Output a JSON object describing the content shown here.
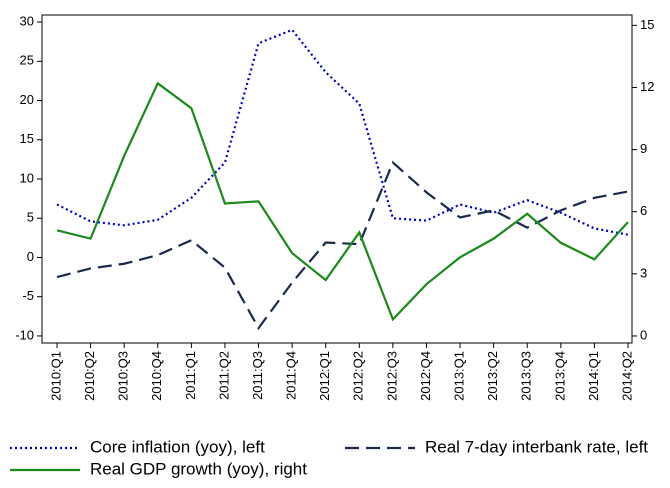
{
  "chart_data": {
    "type": "line",
    "categories": [
      "2010:Q1",
      "2010:Q2",
      "2010:Q3",
      "2010:Q4",
      "2011:Q1",
      "2011:Q2",
      "2011:Q3",
      "2011:Q4",
      "2012:Q1",
      "2012:Q2",
      "2012:Q3",
      "2012:Q4",
      "2013:Q1",
      "2013:Q2",
      "2013:Q3",
      "2013:Q4",
      "2014:Q1",
      "2014:Q2"
    ],
    "series": [
      {
        "name": "Core inflation (yoy), left",
        "color": "#0000cc",
        "dash": "dotted",
        "values": [
          6.75,
          4.6,
          4.1,
          4.8,
          7.6,
          12.1,
          27.3,
          29.0,
          23.6,
          19.6,
          5.0,
          4.7,
          6.75,
          5.7,
          7.3,
          5.7,
          3.7,
          2.9
        ]
      },
      {
        "name": "Real 7-day interbank rate, left",
        "color": "#1a2a4a",
        "dash": "dashed",
        "values": [
          -2.5,
          -1.4,
          -0.8,
          0.3,
          2.2,
          -1.3,
          -9.0,
          -3.2,
          1.9,
          1.7,
          12.1,
          8.3,
          5.1,
          6.0,
          3.8,
          6.0,
          7.6,
          8.4
        ]
      },
      {
        "name": "Real GDP growth (yoy), right",
        "color": "#1a8a1a",
        "dash": "solid",
        "axis": "y2",
        "values": [
          5.1,
          4.7,
          8.7,
          12.2,
          11.0,
          6.4,
          6.5,
          4.0,
          2.7,
          5.0,
          0.8,
          2.5,
          3.8,
          4.7,
          5.9,
          4.5,
          3.7,
          5.5
        ]
      }
    ],
    "ylim": [
      -10.9,
      30.9
    ],
    "yticks": [
      -10,
      -5,
      0,
      5,
      10,
      15,
      20,
      25,
      30
    ],
    "y2lim": [
      -0.34,
      15.5
    ],
    "y2ticks": [
      0,
      3,
      6,
      9,
      12,
      15
    ]
  }
}
